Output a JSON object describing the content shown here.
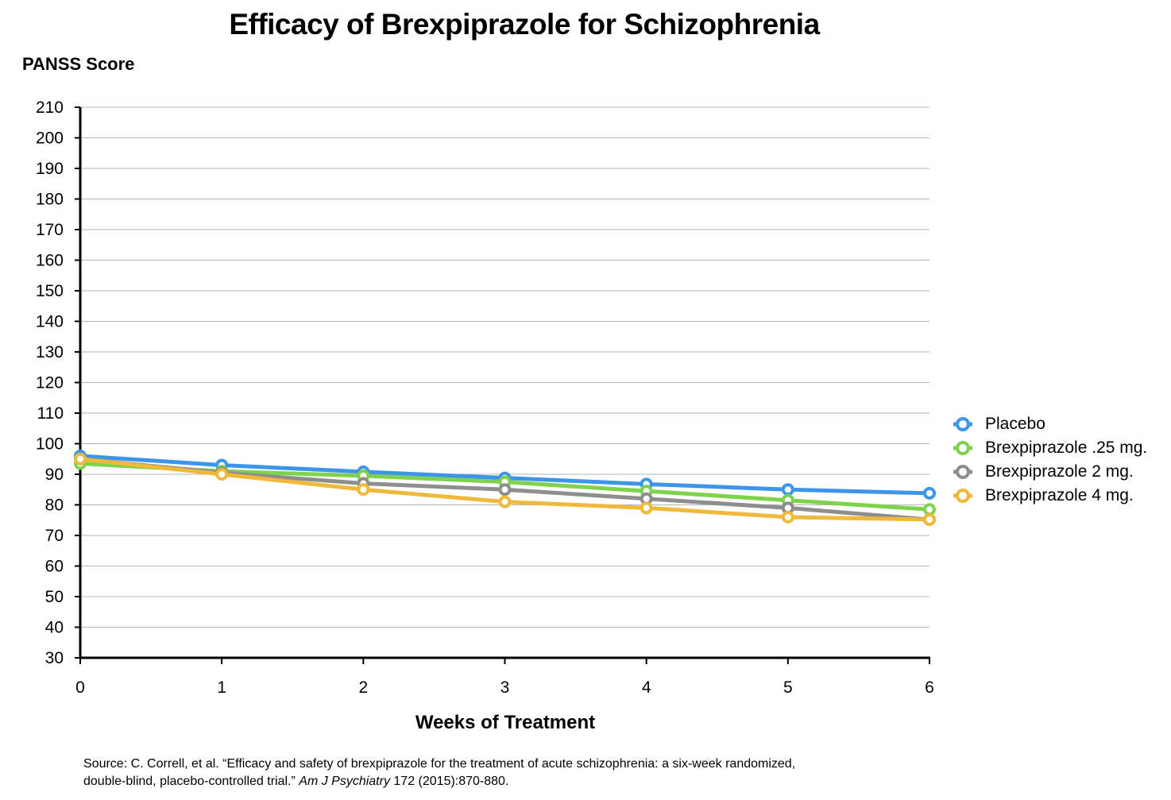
{
  "chart_data": {
    "type": "line",
    "title": "Efficacy of Brexpiprazole for Schizophrenia",
    "ylabel": "PANSS Score",
    "xlabel": "Weeks of Treatment",
    "x": [
      0,
      1,
      2,
      3,
      4,
      5,
      6
    ],
    "ylim": [
      30,
      210
    ],
    "yticks": [
      210,
      200,
      190,
      180,
      170,
      160,
      150,
      140,
      130,
      120,
      110,
      100,
      90,
      80,
      70,
      60,
      50,
      40,
      30
    ],
    "xticks": [
      "0",
      "1",
      "2",
      "3",
      "4",
      "5",
      "6"
    ],
    "grid": "horizontal",
    "legend_position": "right",
    "series": [
      {
        "name": "Placebo",
        "color": "#3d95ea",
        "values": [
          96,
          93,
          90.8,
          88.8,
          86.8,
          85,
          83.8
        ]
      },
      {
        "name": "Brexpiprazole .25 mg.",
        "color": "#7ed24c",
        "values": [
          93.5,
          91,
          89.5,
          87.5,
          84.5,
          81.5,
          78.5
        ]
      },
      {
        "name": "Brexpiprazole 2 mg.",
        "color": "#8e8e8e",
        "values": [
          95,
          90.5,
          87,
          85,
          82,
          79,
          75.2
        ]
      },
      {
        "name": "Brexpiprazole 4 mg.",
        "color": "#f0b93a",
        "values": [
          95,
          90,
          85,
          81,
          79,
          76,
          75.2
        ]
      }
    ]
  },
  "source": {
    "line1": "Source: C. Correll, et al. “Efficacy and safety of brexpiprazole for the treatment of acute schizophrenia: a six-week randomized,",
    "line2_plain": "double-blind, placebo-controlled trial.” ",
    "journal": "Am J Psychiatry",
    "line2_tail": " 172 (2015):870-880."
  }
}
